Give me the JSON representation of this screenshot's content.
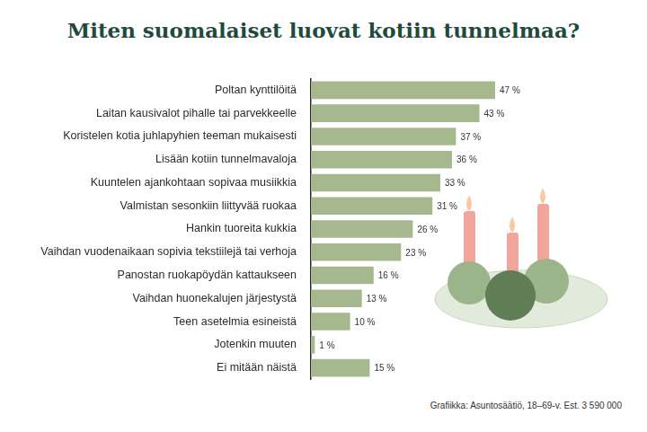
{
  "chart_data": {
    "type": "bar",
    "title": "Miten suomalaiset luovat kotiin tunnelmaa?",
    "orientation": "horizontal",
    "categories": [
      "Poltan kynttilöitä",
      "Laitan kausivalot pihalle tai parvekkeelle",
      "Koristelen kotia juhlapyhien teeman mukaisesti",
      "Lisään kotiin tunnelmavaloja",
      "Kuuntelen ajankohtaan sopivaa musiikkia",
      "Valmistan sesonkiin liittyvää ruokaa",
      "Hankin tuoreita kukkia",
      "Vaihdan vuodenaikaan sopivia tekstiilejä tai verhoja",
      "Panostan ruokapöydän kattaukseen",
      "Vaihdan huonekalujen järjestystä",
      "Teen asetelmia esineistä",
      "Jotenkin muuten",
      "Ei mitään näistä"
    ],
    "values": [
      47,
      43,
      37,
      36,
      33,
      31,
      26,
      23,
      16,
      13,
      10,
      1,
      15
    ],
    "value_labels": [
      "47 %",
      "43 %",
      "37 %",
      "36 %",
      "33 %",
      "31 %",
      "26 %",
      "23 %",
      "16 %",
      "13 %",
      "10 %",
      "1 %",
      "15 %"
    ],
    "color": "#a6b98e",
    "data_labels": true,
    "tick_labels": "y",
    "grid": false,
    "source": "Grafiikka: Asuntosäätiö, 18–69-v. Est. 3 590 000"
  }
}
